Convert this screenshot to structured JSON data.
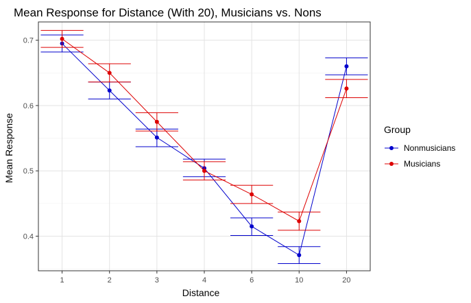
{
  "chart_data": {
    "type": "line",
    "title": "Mean Response for Distance (With 20), Musicians vs. Nons",
    "xlabel": "Distance",
    "ylabel": "Mean Response",
    "categories": [
      "1",
      "2",
      "3",
      "4",
      "6",
      "10",
      "20"
    ],
    "ylim": [
      0.347,
      0.728
    ],
    "yticks": [
      0.4,
      0.5,
      0.6,
      0.7
    ],
    "grid": true,
    "legend": {
      "title": "Group",
      "position": "right"
    },
    "series": [
      {
        "name": "Nonmusicians",
        "color": "#0000cc",
        "values": [
          0.695,
          0.623,
          0.551,
          0.504,
          0.415,
          0.371,
          0.66
        ],
        "error_low": [
          0.682,
          0.61,
          0.537,
          0.491,
          0.401,
          0.358,
          0.647
        ],
        "error_high": [
          0.708,
          0.636,
          0.564,
          0.518,
          0.428,
          0.384,
          0.673
        ]
      },
      {
        "name": "Musicians",
        "color": "#dd0000",
        "values": [
          0.702,
          0.65,
          0.575,
          0.5,
          0.464,
          0.423,
          0.626
        ],
        "error_low": [
          0.689,
          0.636,
          0.561,
          0.486,
          0.45,
          0.409,
          0.612
        ],
        "error_high": [
          0.715,
          0.664,
          0.589,
          0.514,
          0.478,
          0.437,
          0.64
        ]
      }
    ]
  }
}
